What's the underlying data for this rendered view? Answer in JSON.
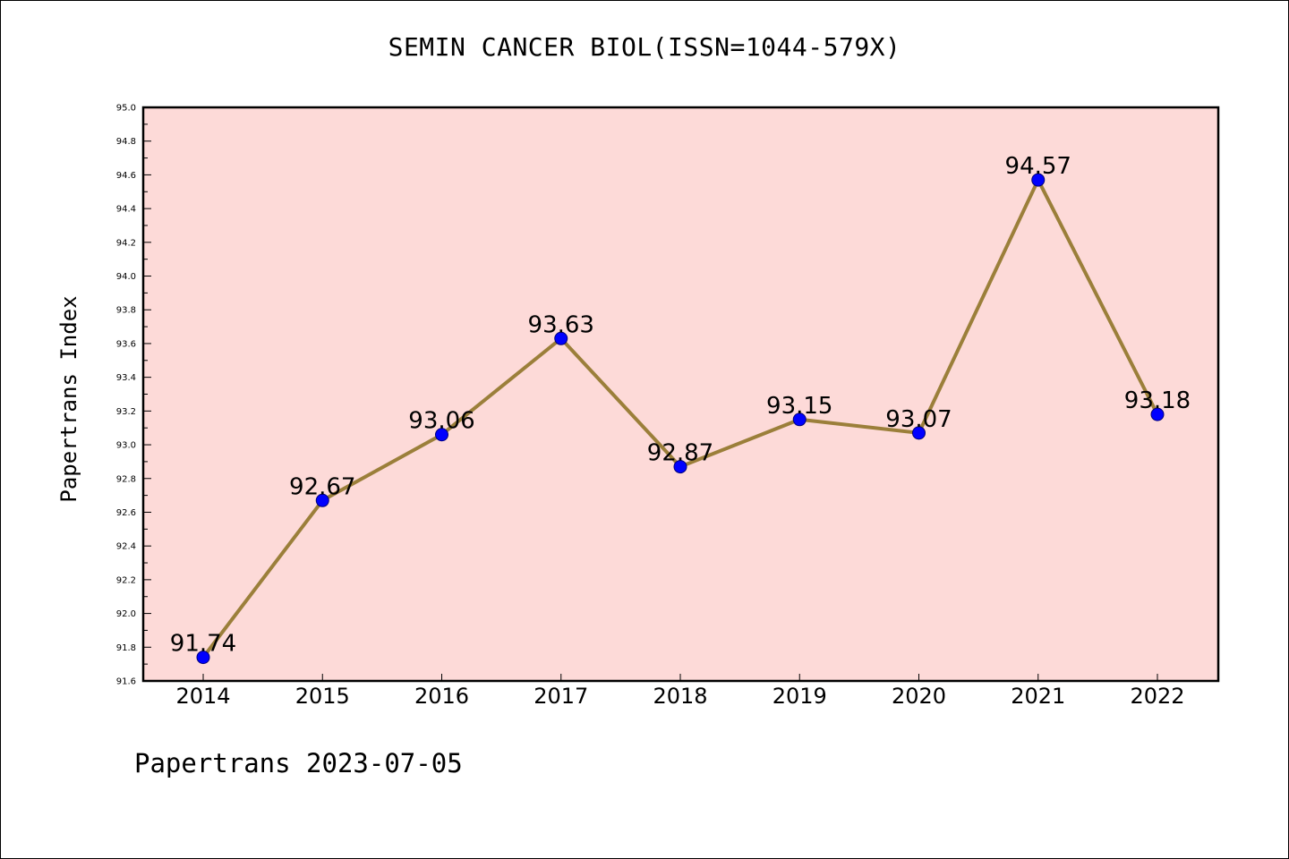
{
  "footer": {
    "text": "Papertrans 2023-07-05"
  },
  "chart_data": {
    "type": "line",
    "title": "SEMIN CANCER BIOL(ISSN=1044-579X)",
    "xlabel": "",
    "ylabel": "Papertrans Index",
    "categories": [
      "2014",
      "2015",
      "2016",
      "2017",
      "2018",
      "2019",
      "2020",
      "2021",
      "2022"
    ],
    "series": [
      {
        "values": [
          91.74,
          92.67,
          93.06,
          93.63,
          92.87,
          93.15,
          93.07,
          94.57,
          93.18
        ],
        "data_labels": [
          "91.74",
          "92.67",
          "93.06",
          "93.63",
          "92.87",
          "93.15",
          "93.07",
          "94.57",
          "93.18"
        ]
      }
    ],
    "ylim": [
      91.6,
      95.0
    ],
    "yticks": [
      "91.6",
      "91.8",
      "92.0",
      "92.2",
      "92.4",
      "92.6",
      "92.8",
      "93.0",
      "93.2",
      "93.4",
      "93.6",
      "93.8",
      "94.0",
      "94.2",
      "94.4",
      "94.6",
      "94.8",
      "95.0"
    ],
    "grid": false,
    "legend": false,
    "colors": {
      "plot_background": "#fddad8",
      "line": "#9b7f3a",
      "marker_fill": "#0000ff",
      "marker_edge": "#00007a",
      "axes": "#000000"
    }
  }
}
